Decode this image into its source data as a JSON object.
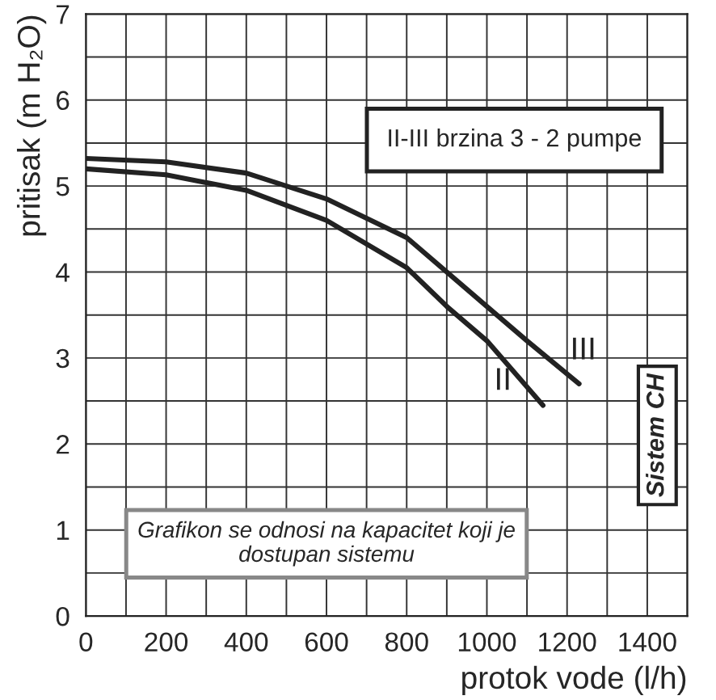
{
  "chart_data": {
    "type": "line",
    "xlabel": "protok vode (l/h)",
    "ylabel": "pritisak (m H₂O)",
    "xlim": [
      0,
      1500
    ],
    "ylim": [
      0,
      7
    ],
    "xticks": [
      0,
      200,
      400,
      600,
      800,
      1000,
      1200,
      1400
    ],
    "yticks": [
      0,
      1,
      2,
      3,
      4,
      5,
      6,
      7
    ],
    "grid": true,
    "legend": false,
    "marker": "none",
    "line_style": "solid",
    "series": [
      {
        "name": "III",
        "color": "#222222",
        "x": [
          0,
          200,
          400,
          600,
          800,
          1000,
          1100,
          1230
        ],
        "values": [
          5.32,
          5.28,
          5.15,
          4.85,
          4.4,
          3.6,
          3.2,
          2.7
        ]
      },
      {
        "name": "II",
        "color": "#222222",
        "x": [
          0,
          200,
          400,
          600,
          800,
          900,
          1000,
          1140
        ],
        "values": [
          5.2,
          5.13,
          4.95,
          4.6,
          4.05,
          3.6,
          3.2,
          2.45
        ]
      }
    ],
    "annotations": [
      "II-III brzina 3 - 2 pumpe",
      "Grafikon se odnosi na kapacitet koji je dostupan sistemu",
      "Sistem CH"
    ]
  }
}
